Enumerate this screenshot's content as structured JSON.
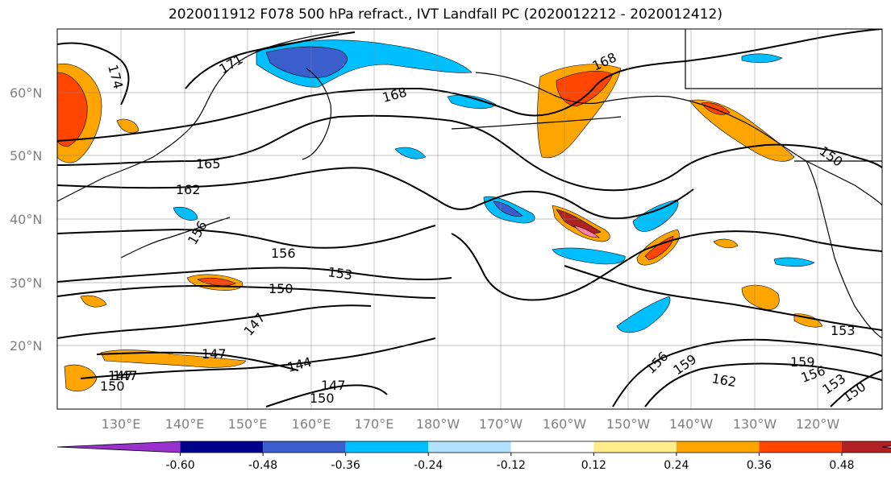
{
  "title": "2020011912 F078 500 hPa refract., IVT Landfall PC (2020012212 - 2020012412)",
  "lat_labels": [
    "60°N",
    "50°N",
    "40°N",
    "30°N",
    "20°N"
  ],
  "lon_labels": [
    "130°E",
    "140°E",
    "150°E",
    "160°E",
    "170°E",
    "180°W",
    "170°W",
    "160°W",
    "150°W",
    "140°W",
    "130°W",
    "120°W"
  ],
  "contour_labels": [
    "174",
    "171",
    "168",
    "168",
    "165",
    "162",
    "156",
    "156",
    "153",
    "150",
    "150",
    "147",
    "147",
    "147",
    "144",
    "147",
    "150",
    "159",
    "156",
    "153",
    "150",
    "162",
    "159",
    "156",
    "153",
    "150",
    "147"
  ],
  "colorbar": {
    "ticks": [
      "-0.60",
      "-0.48",
      "-0.36",
      "-0.24",
      "-0.12",
      "0.12",
      "0.24",
      "0.36",
      "0.48",
      "0.60"
    ],
    "colors": [
      "#9932cc",
      "#00008b",
      "#3a5fcd",
      "#00bfff",
      "#b0e2ff",
      "#ffffff",
      "#ffec8b",
      "#ffa500",
      "#ff4500",
      "#b22222",
      "#ff82ab"
    ]
  }
}
